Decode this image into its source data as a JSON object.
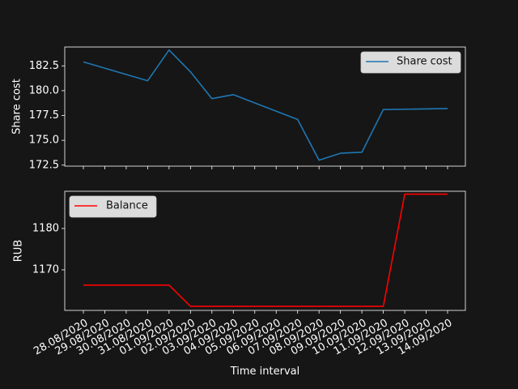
{
  "colors": {
    "background": "#161616",
    "axes": "#ffffff",
    "share_cost": "#1f77b4",
    "balance": "#ff0000",
    "legend_bg": "#dcdcdc"
  },
  "chart_data": [
    {
      "type": "line",
      "ylabel": "Share cost",
      "xlabel": "",
      "ylim": [
        172.4,
        184.4
      ],
      "yticks": [
        172.5,
        175.0,
        177.5,
        180.0,
        182.5
      ],
      "ytick_labels": [
        "172.5",
        "175.0",
        "177.5",
        "180.0",
        "182.5"
      ],
      "legend_position": "top-right",
      "grid": false,
      "x_labels_shown": false,
      "series": [
        {
          "name": "Share cost",
          "color": "#1f77b4",
          "x": [
            "28.08/2020",
            "31.08/2020",
            "01.09/2020",
            "02.09/2020",
            "03.09/2020",
            "04.09/2020",
            "07.09/2020",
            "08.09/2020",
            "09.09/2020",
            "10.09/2020",
            "11.09/2020",
            "14.09/2020"
          ],
          "values": [
            182.9,
            181.0,
            184.1,
            181.9,
            179.2,
            179.6,
            177.1,
            173.0,
            173.7,
            173.8,
            178.1,
            178.2
          ]
        }
      ]
    },
    {
      "type": "line",
      "ylabel": "RUB",
      "xlabel": "Time interval",
      "ylim": [
        1160.2,
        1189.0
      ],
      "yticks": [
        1170,
        1180
      ],
      "ytick_labels": [
        "1170",
        "1180"
      ],
      "legend_position": "top-left",
      "grid": false,
      "series": [
        {
          "name": "Balance",
          "color": "#ff0000",
          "x": [
            "28.08/2020",
            "01.09/2020",
            "02.09/2020",
            "11.09/2020",
            "12.09/2020",
            "14.09/2020"
          ],
          "values": [
            1166.3,
            1166.3,
            1161.2,
            1161.2,
            1188.3,
            1188.3
          ]
        }
      ]
    }
  ],
  "x_categories": [
    "28.08/2020",
    "29.08/2020",
    "30.08/2020",
    "31.08/2020",
    "01.09/2020",
    "02.09/2020",
    "03.09/2020",
    "04.09/2020",
    "05.09/2020",
    "06.09/2020",
    "07.09/2020",
    "08.09/2020",
    "09.09/2020",
    "10.09/2020",
    "11.09/2020",
    "12.09/2020",
    "13.09/2020",
    "14.09/2020"
  ]
}
